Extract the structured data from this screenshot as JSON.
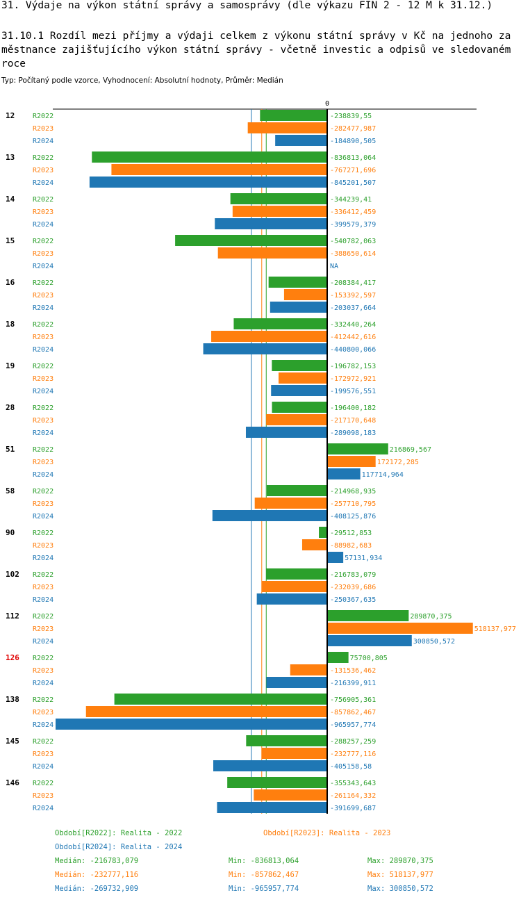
{
  "title": "31. Výdaje na výkon státní správy a samosprávy (dle výkazu FIN 2 - 12 M k 31.12.)",
  "subtitle": "31.10.1 Rozdíl mezi příjmy a výdaji celkem z výkonu státní správy v Kč na jednoho zaměstnance zajišťujícího výkon státní správy - včetně investic a odpisů ve sledovaném roce",
  "type_line": "Typ: Počítaný podle vzorce, Vyhodnocení: Absolutní hodnoty, Průměr: Medián",
  "colors": {
    "R2022": "#2ca02c",
    "R2023": "#ff7f0e",
    "R2024": "#1f77b4",
    "highlight": "#e00000"
  },
  "chart_data": {
    "type": "bar",
    "orientation": "horizontal",
    "zero_label": "0",
    "xlim": [
      -986000,
      530000
    ],
    "highlight_category": "126",
    "series_names": [
      "R2022",
      "R2023",
      "R2024"
    ],
    "categories": [
      "12",
      "13",
      "14",
      "15",
      "16",
      "18",
      "19",
      "28",
      "51",
      "58",
      "90",
      "102",
      "112",
      "126",
      "138",
      "145",
      "146"
    ],
    "series": [
      {
        "name": "R2022",
        "values": [
          -238839.55,
          -836813.064,
          -344239.41,
          -540782.063,
          -208384.417,
          -332440.264,
          -196782.153,
          -196400.182,
          216869.567,
          -214968.935,
          -29512.853,
          -216783.079,
          289870.375,
          75700.805,
          -756905.361,
          -288257.259,
          -355343.643
        ],
        "labels": [
          "-238839,55",
          "-836813,064",
          "-344239,41",
          "-540782,063",
          "-208384,417",
          "-332440,264",
          "-196782,153",
          "-196400,182",
          "216869,567",
          "-214968,935",
          "-29512,853",
          "-216783,079",
          "289870,375",
          "75700,805",
          "-756905,361",
          "-288257,259",
          "-355343,643"
        ]
      },
      {
        "name": "R2023",
        "values": [
          -282477.987,
          -767271.696,
          -336412.459,
          -388650.614,
          -153392.597,
          -412442.616,
          -172972.921,
          -217170.648,
          172172.285,
          -257710.795,
          -88982.683,
          -232039.686,
          518137.977,
          -131536.462,
          -857862.467,
          -232777.116,
          -261164.332
        ],
        "labels": [
          "-282477,987",
          "-767271,696",
          "-336412,459",
          "-388650,614",
          "-153392,597",
          "-412442,616",
          "-172972,921",
          "-217170,648",
          "172172,285",
          "-257710,795",
          "-88982,683",
          "-232039,686",
          "518137,977",
          "-131536,462",
          "-857862,467",
          "-232777,116",
          "-261164,332"
        ]
      },
      {
        "name": "R2024",
        "values": [
          -184890.505,
          -845201.507,
          -399579.379,
          null,
          -203037.664,
          -440800.066,
          -199576.551,
          -289098.183,
          117714.964,
          -408125.876,
          57131.934,
          -250367.635,
          300850.572,
          -216399.911,
          -965957.774,
          -405158.58,
          -391699.687
        ],
        "labels": [
          "-184890,505",
          "-845201,507",
          "-399579,379",
          "NA",
          "-203037,664",
          "-440800,066",
          "-199576,551",
          "-289098,183",
          "117714,964",
          "-408125,876",
          "57131,934",
          "-250367,635",
          "300850,572",
          "-216399,911",
          "-965957,774",
          "-405158,58",
          "-391699,687"
        ]
      }
    ],
    "median_lines": {
      "R2022": -216783.079,
      "R2023": -232777.116,
      "R2024": -269732.909
    }
  },
  "legend": {
    "r2022": "Období[R2022]: Realita - 2022",
    "r2023": "Období[R2023]: Realita - 2023",
    "r2024": "Období[R2024]: Realita - 2024"
  },
  "stats": {
    "r2022": {
      "median": "Medián: -216783,079",
      "min": "Min: -836813,064",
      "max": "Max: 289870,375"
    },
    "r2023": {
      "median": "Medián: -232777,116",
      "min": "Min: -857862,467",
      "max": "Max: 518137,977"
    },
    "r2024": {
      "median": "Medián: -269732,909",
      "min": "Min: -965957,774",
      "max": "Max: 300850,572"
    }
  }
}
